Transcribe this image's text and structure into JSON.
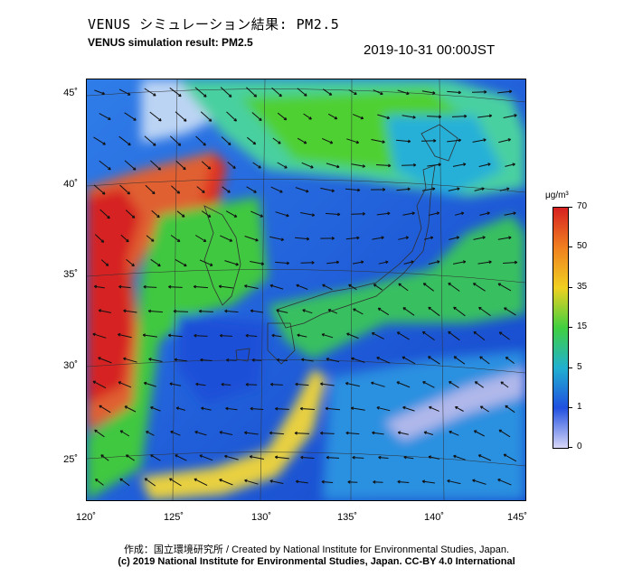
{
  "header": {
    "title_jp": "VENUS シミュレーション結果: PM2.5",
    "title_en": "VENUS simulation result: PM2.5",
    "timestamp": "2019-10-31 00:00JST"
  },
  "map": {
    "region": "East Asia / Japan",
    "lat_labels": [
      "45˚",
      "40˚",
      "35˚",
      "30˚",
      "25˚"
    ],
    "lon_labels": [
      "120˚",
      "125˚",
      "130˚",
      "135˚",
      "140˚",
      "145˚"
    ],
    "field": "PM2.5 concentration",
    "overlay": "wind vectors"
  },
  "colorbar": {
    "unit": "μg/m³",
    "ticks": [
      "70",
      "50",
      "35",
      "15",
      "5",
      "1",
      "0"
    ],
    "colors": [
      "#d62020",
      "#f08020",
      "#f0d020",
      "#40d040",
      "#20b0d0",
      "#2050e0",
      "#d8d8f8"
    ]
  },
  "footer": {
    "line1": "作成：国立環境研究所 / Created by National Institute for Environmental Studies, Japan.",
    "line2": "(c) 2019 National Institute for Environmental Studies, Japan. CC-BY 4.0 International"
  }
}
